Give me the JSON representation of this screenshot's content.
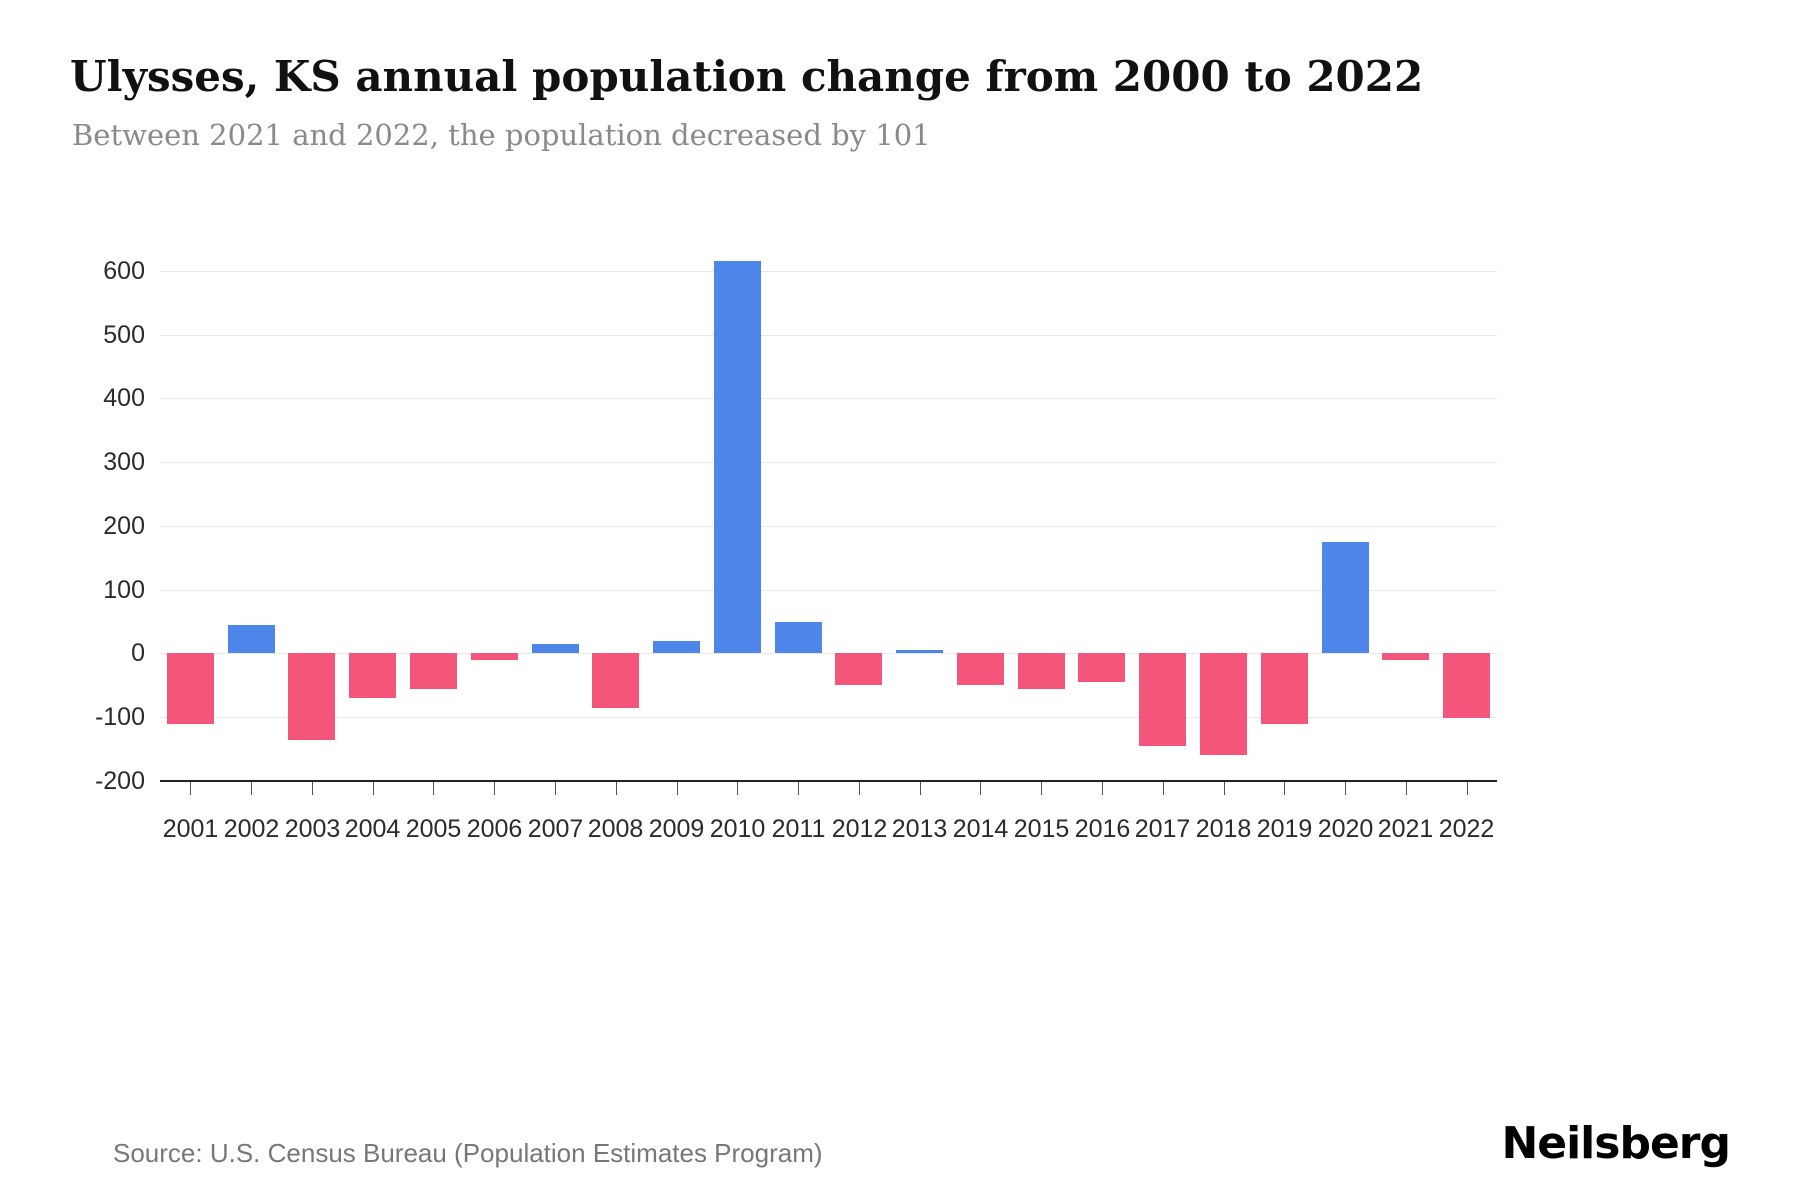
{
  "chart": {
    "title": "Ulysses, KS annual population change from 2000 to 2022",
    "subtitle": "Between 2021 and 2022, the population decreased by 101",
    "source": "Source: U.S. Census Bureau (Population Estimates Program)",
    "brand": "Neilsberg"
  },
  "chart_data": {
    "type": "bar",
    "title": "Ulysses, KS annual population change from 2000 to 2022",
    "subtitle": "Between 2021 and 2022, the population decreased by 101",
    "xlabel": "",
    "ylabel": "",
    "categories": [
      "2001",
      "2002",
      "2003",
      "2004",
      "2005",
      "2006",
      "2007",
      "2008",
      "2009",
      "2010",
      "2011",
      "2012",
      "2013",
      "2014",
      "2015",
      "2016",
      "2017",
      "2018",
      "2019",
      "2020",
      "2021",
      "2022"
    ],
    "values": [
      -110,
      45,
      -135,
      -70,
      -55,
      -10,
      15,
      -85,
      20,
      615,
      50,
      -50,
      5,
      -50,
      -55,
      -45,
      -145,
      -160,
      -110,
      175,
      -10,
      -101
    ],
    "positive_color": "#4d86e8",
    "negative_color": "#f4567b",
    "grid": true,
    "grid_color": "#e9e9e9",
    "axis_color": "#222222",
    "legend_position": "none",
    "ylim": [
      -200,
      625
    ],
    "yticks": [
      -200,
      -100,
      0,
      100,
      200,
      300,
      400,
      500,
      600
    ]
  }
}
